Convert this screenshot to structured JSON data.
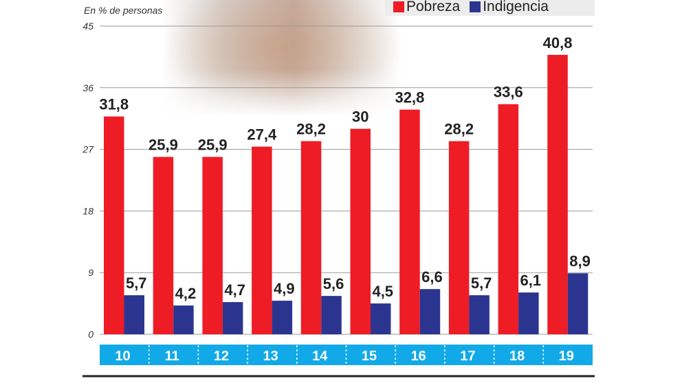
{
  "chart_data": {
    "type": "bar",
    "subtitle": "En % de personas",
    "categories": [
      "10",
      "11",
      "12",
      "13",
      "14",
      "15",
      "16",
      "17",
      "18",
      "19"
    ],
    "series": [
      {
        "name": "Pobreza",
        "color": "#ee1c25",
        "values": [
          31.8,
          25.9,
          25.9,
          27.4,
          28.2,
          30,
          32.8,
          28.2,
          33.6,
          40.8
        ],
        "labels": [
          "31,8",
          "25,9",
          "25,9",
          "27,4",
          "28,2",
          "30",
          "32,8",
          "28,2",
          "33,6",
          "40,8"
        ]
      },
      {
        "name": "Indigencia",
        "color": "#2b3590",
        "values": [
          5.7,
          4.2,
          4.7,
          4.9,
          5.6,
          4.5,
          6.6,
          5.7,
          6.1,
          8.9
        ],
        "labels": [
          "5,7",
          "4,2",
          "4,7",
          "4,9",
          "5,6",
          "4,5",
          "6,6",
          "5,7",
          "6,1",
          "8,9"
        ]
      }
    ],
    "yticks": [
      "0",
      "9",
      "18",
      "27",
      "36",
      "45"
    ],
    "ylim": [
      0,
      45
    ],
    "grid": true,
    "legend": "top-right",
    "category_band_color": "#12a9e8"
  }
}
